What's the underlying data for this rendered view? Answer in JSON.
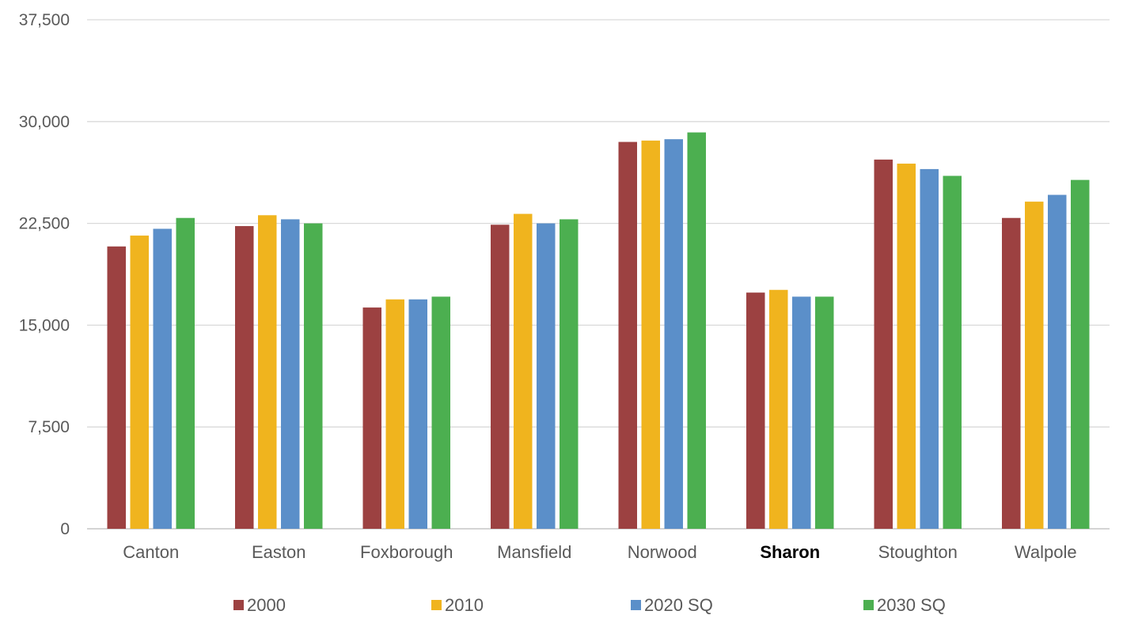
{
  "chart_data": {
    "type": "bar",
    "title": "",
    "xlabel": "",
    "ylabel": "",
    "ylim": [
      0,
      37500
    ],
    "yticks": [
      0,
      7500,
      15000,
      22500,
      30000,
      37500
    ],
    "ytick_labels": [
      "0",
      "7,500",
      "15,000",
      "22,500",
      "30,000",
      "37,500"
    ],
    "grid": true,
    "legend_position": "bottom",
    "categories": [
      "Canton",
      "Easton",
      "Foxborough",
      "Mansfield",
      "Norwood",
      "Sharon",
      "Stoughton",
      "Walpole"
    ],
    "emphasized_category": "Sharon",
    "series": [
      {
        "name": "2000",
        "color": "#9c4141",
        "values": [
          20800,
          22300,
          16300,
          22400,
          28500,
          17400,
          27200,
          22900
        ]
      },
      {
        "name": "2010",
        "color": "#f0b41e",
        "values": [
          21600,
          23100,
          16900,
          23200,
          28600,
          17600,
          26900,
          24100
        ]
      },
      {
        "name": "2020 SQ",
        "color": "#5b8fc9",
        "values": [
          22100,
          22800,
          16900,
          22500,
          28700,
          17100,
          26500,
          24600
        ]
      },
      {
        "name": "2030 SQ",
        "color": "#4caf50",
        "values": [
          22900,
          22500,
          17100,
          22800,
          29200,
          17100,
          26000,
          25700
        ]
      }
    ]
  }
}
